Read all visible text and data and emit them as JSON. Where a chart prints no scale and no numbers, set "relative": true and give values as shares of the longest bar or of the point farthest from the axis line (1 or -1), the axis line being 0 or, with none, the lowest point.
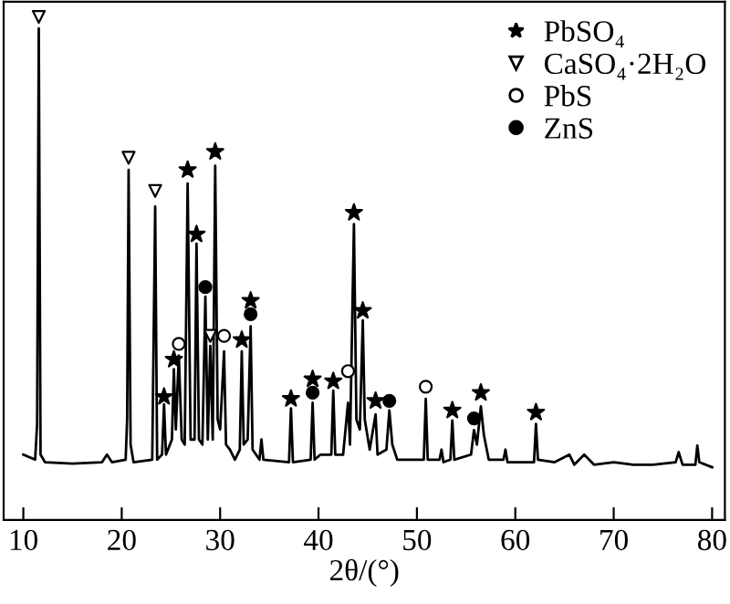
{
  "chart_data": {
    "type": "line",
    "relative": true,
    "xlabel": "2θ/(°)",
    "xlim": [
      8,
      81.3
    ],
    "xticks": [
      10,
      20,
      30,
      40,
      50,
      60,
      70,
      80
    ],
    "grid": false,
    "legend": "top right",
    "series": [
      {
        "color": "#000000",
        "x": [
          10.0,
          11.2,
          11.4,
          11.57,
          11.75,
          12.2,
          15,
          18,
          18.5,
          19,
          20.4,
          20.55,
          20.7,
          20.9,
          21.2,
          23.1,
          23.4,
          23.6,
          24.1,
          24.3,
          24.5,
          25.1,
          25.3,
          25.5,
          25.8,
          26.1,
          26.4,
          26.7,
          27.0,
          27.4,
          27.6,
          27.85,
          28.2,
          28.5,
          28.75,
          29.0,
          29.25,
          29.5,
          29.75,
          30.0,
          30.4,
          30.6,
          31.0,
          31.5,
          32.0,
          32.2,
          32.4,
          32.8,
          33.1,
          33.3,
          34.0,
          34.2,
          34.4,
          37.0,
          37.2,
          37.4,
          39.2,
          39.4,
          39.6,
          40.2,
          41.3,
          41.5,
          41.7,
          42.5,
          43.0,
          43.2,
          43.6,
          43.85,
          44.2,
          44.5,
          44.7,
          45.2,
          45.8,
          46.0,
          46.9,
          47.2,
          47.5,
          48.0,
          50.7,
          50.9,
          51.1,
          52.3,
          52.5,
          52.7,
          53.4,
          53.6,
          53.8,
          55.5,
          55.8,
          56.1,
          56.5,
          56.8,
          57.3,
          58.8,
          59.0,
          59.2,
          61.9,
          62.1,
          62.3,
          64,
          65.5,
          66,
          67,
          68,
          70,
          72,
          74,
          76.3,
          76.6,
          77,
          78.3,
          78.5,
          78.7,
          80
        ],
        "values": [
          0.13,
          0.12,
          0.19,
          0.977,
          0.13,
          0.115,
          0.112,
          0.115,
          0.13,
          0.115,
          0.12,
          0.2,
          0.696,
          0.15,
          0.115,
          0.12,
          0.623,
          0.12,
          0.13,
          0.23,
          0.13,
          0.16,
          0.3,
          0.18,
          0.327,
          0.16,
          0.15,
          0.669,
          0.16,
          0.16,
          0.549,
          0.16,
          0.15,
          0.444,
          0.16,
          0.346,
          0.16,
          0.704,
          0.2,
          0.18,
          0.335,
          0.15,
          0.14,
          0.12,
          0.14,
          0.335,
          0.15,
          0.16,
          0.385,
          0.14,
          0.12,
          0.16,
          0.12,
          0.115,
          0.222,
          0.115,
          0.12,
          0.233,
          0.12,
          0.13,
          0.13,
          0.257,
          0.13,
          0.13,
          0.233,
          0.15,
          0.588,
          0.2,
          0.18,
          0.397,
          0.2,
          0.14,
          0.21,
          0.13,
          0.14,
          0.218,
          0.15,
          0.12,
          0.12,
          0.241,
          0.12,
          0.12,
          0.14,
          0.115,
          0.12,
          0.198,
          0.12,
          0.13,
          0.179,
          0.15,
          0.226,
          0.17,
          0.12,
          0.12,
          0.14,
          0.115,
          0.115,
          0.191,
          0.12,
          0.115,
          0.13,
          0.11,
          0.13,
          0.11,
          0.115,
          0.11,
          0.11,
          0.115,
          0.135,
          0.11,
          0.11,
          0.148,
          0.115,
          0.105
        ]
      },
      {
        "type": "scatter",
        "name": "PbSO₄",
        "marker": "star",
        "color": "#000000",
        "x": [
          24.3,
          25.3,
          26.7,
          27.6,
          29.5,
          32.2,
          33.1,
          37.2,
          39.4,
          41.5,
          43.6,
          44.5,
          45.8,
          53.6,
          56.5,
          62.1
        ],
        "values": [
          0.245,
          0.319,
          0.696,
          0.568,
          0.732,
          0.358,
          0.436,
          0.241,
          0.28,
          0.276,
          0.611,
          0.416,
          0.237,
          0.218,
          0.253,
          0.214
        ]
      },
      {
        "type": "scatter",
        "name": "CaSO₄·2H₂O",
        "marker": "triangle",
        "color": "#ffffff",
        "x": [
          11.57,
          20.7,
          23.4,
          29.0
        ],
        "values": [
          1.0,
          0.72,
          0.654,
          0.366
        ]
      },
      {
        "type": "scatter",
        "name": "PbS",
        "marker": "circle",
        "color": "#ffffff",
        "x": [
          25.8,
          30.4,
          43.0,
          50.9
        ],
        "values": [
          0.35,
          0.366,
          0.296,
          0.265
        ]
      },
      {
        "type": "scatter",
        "name": "ZnS",
        "marker": "circle",
        "color": "#000000",
        "x": [
          28.5,
          33.1,
          39.4,
          47.2,
          55.8
        ],
        "values": [
          0.463,
          0.409,
          0.253,
          0.237,
          0.202
        ]
      }
    ]
  }
}
